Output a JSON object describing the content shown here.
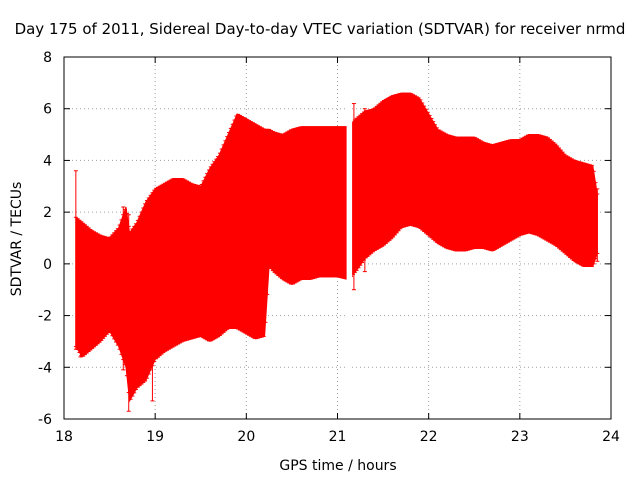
{
  "chart_data": {
    "type": "area",
    "title": "Day 175 of 2011, Sidereal Day-to-day VTEC variation (SDTVAR) for receiver nrmd",
    "xlabel": "GPS time / hours",
    "ylabel": "SDTVAR / TECUs",
    "xlim": [
      18,
      24
    ],
    "ylim": [
      -6,
      8
    ],
    "xticks": [
      18,
      19,
      20,
      21,
      22,
      23,
      24
    ],
    "yticks": [
      -6,
      -4,
      -2,
      0,
      2,
      4,
      6,
      8
    ],
    "grid": true,
    "series_color": "#ff0000",
    "series": [
      {
        "name": "SDTVAR",
        "x": [
          18.13,
          18.2,
          18.3,
          18.4,
          18.5,
          18.6,
          18.68,
          18.72,
          18.8,
          18.9,
          19.0,
          19.1,
          19.2,
          19.3,
          19.4,
          19.5,
          19.6,
          19.7,
          19.8,
          19.9,
          20.0,
          20.1,
          20.2,
          20.25,
          20.3,
          20.4,
          20.5,
          20.6,
          20.7,
          20.8,
          20.9,
          21.0,
          21.12,
          21.2,
          21.3,
          21.4,
          21.5,
          21.6,
          21.7,
          21.8,
          21.9,
          22.0,
          22.1,
          22.2,
          22.3,
          22.4,
          22.5,
          22.6,
          22.7,
          22.8,
          22.9,
          23.0,
          23.1,
          23.2,
          23.3,
          23.4,
          23.5,
          23.6,
          23.7,
          23.8,
          23.85
        ],
        "upper": [
          1.8,
          1.6,
          1.3,
          1.1,
          1.0,
          1.4,
          2.2,
          1.2,
          1.6,
          2.4,
          2.9,
          3.1,
          3.3,
          3.3,
          3.1,
          3.0,
          3.7,
          4.2,
          5.0,
          5.8,
          5.6,
          5.4,
          5.2,
          5.2,
          5.1,
          5.0,
          5.2,
          5.3,
          5.3,
          5.3,
          5.3,
          5.3,
          5.3,
          5.6,
          5.9,
          6.0,
          6.3,
          6.5,
          6.6,
          6.6,
          6.4,
          5.8,
          5.2,
          5.0,
          4.9,
          4.9,
          4.9,
          4.7,
          4.6,
          4.7,
          4.8,
          4.8,
          5.0,
          5.0,
          4.9,
          4.6,
          4.2,
          4.0,
          3.9,
          3.8,
          2.7
        ],
        "lower": [
          -3.2,
          -3.6,
          -3.3,
          -3.0,
          -2.6,
          -3.2,
          -4.0,
          -5.3,
          -4.8,
          -4.5,
          -3.7,
          -3.4,
          -3.2,
          -3.0,
          -2.9,
          -2.8,
          -3.0,
          -2.8,
          -2.5,
          -2.5,
          -2.7,
          -2.9,
          -2.8,
          -0.1,
          -0.3,
          -0.6,
          -0.8,
          -0.6,
          -0.6,
          -0.5,
          -0.5,
          -0.5,
          -0.6,
          -0.3,
          0.2,
          0.5,
          0.7,
          1.0,
          1.4,
          1.5,
          1.4,
          1.1,
          0.8,
          0.6,
          0.5,
          0.5,
          0.6,
          0.6,
          0.5,
          0.7,
          0.9,
          1.1,
          1.2,
          1.1,
          0.9,
          0.7,
          0.4,
          0.1,
          -0.1,
          -0.1,
          0.4
        ]
      }
    ],
    "error_bar_extremes": [
      {
        "x": 18.13,
        "top": 3.6,
        "bottom": -3.3
      },
      {
        "x": 18.18,
        "top": 1.5,
        "bottom": -3.6
      },
      {
        "x": 18.65,
        "top": 2.2,
        "bottom": -4.1
      },
      {
        "x": 18.71,
        "top": 1.9,
        "bottom": -5.7
      },
      {
        "x": 18.97,
        "top": 2.6,
        "bottom": -5.3
      },
      {
        "x": 21.0,
        "top": 5.3,
        "bottom": -0.4
      },
      {
        "x": 21.18,
        "top": 6.2,
        "bottom": -1.0
      },
      {
        "x": 21.3,
        "top": 6.0,
        "bottom": -0.3
      },
      {
        "x": 23.85,
        "top": 2.9,
        "bottom": 0.1
      },
      {
        "x": 23.83,
        "top": 2.0,
        "bottom": 0.2
      }
    ]
  }
}
